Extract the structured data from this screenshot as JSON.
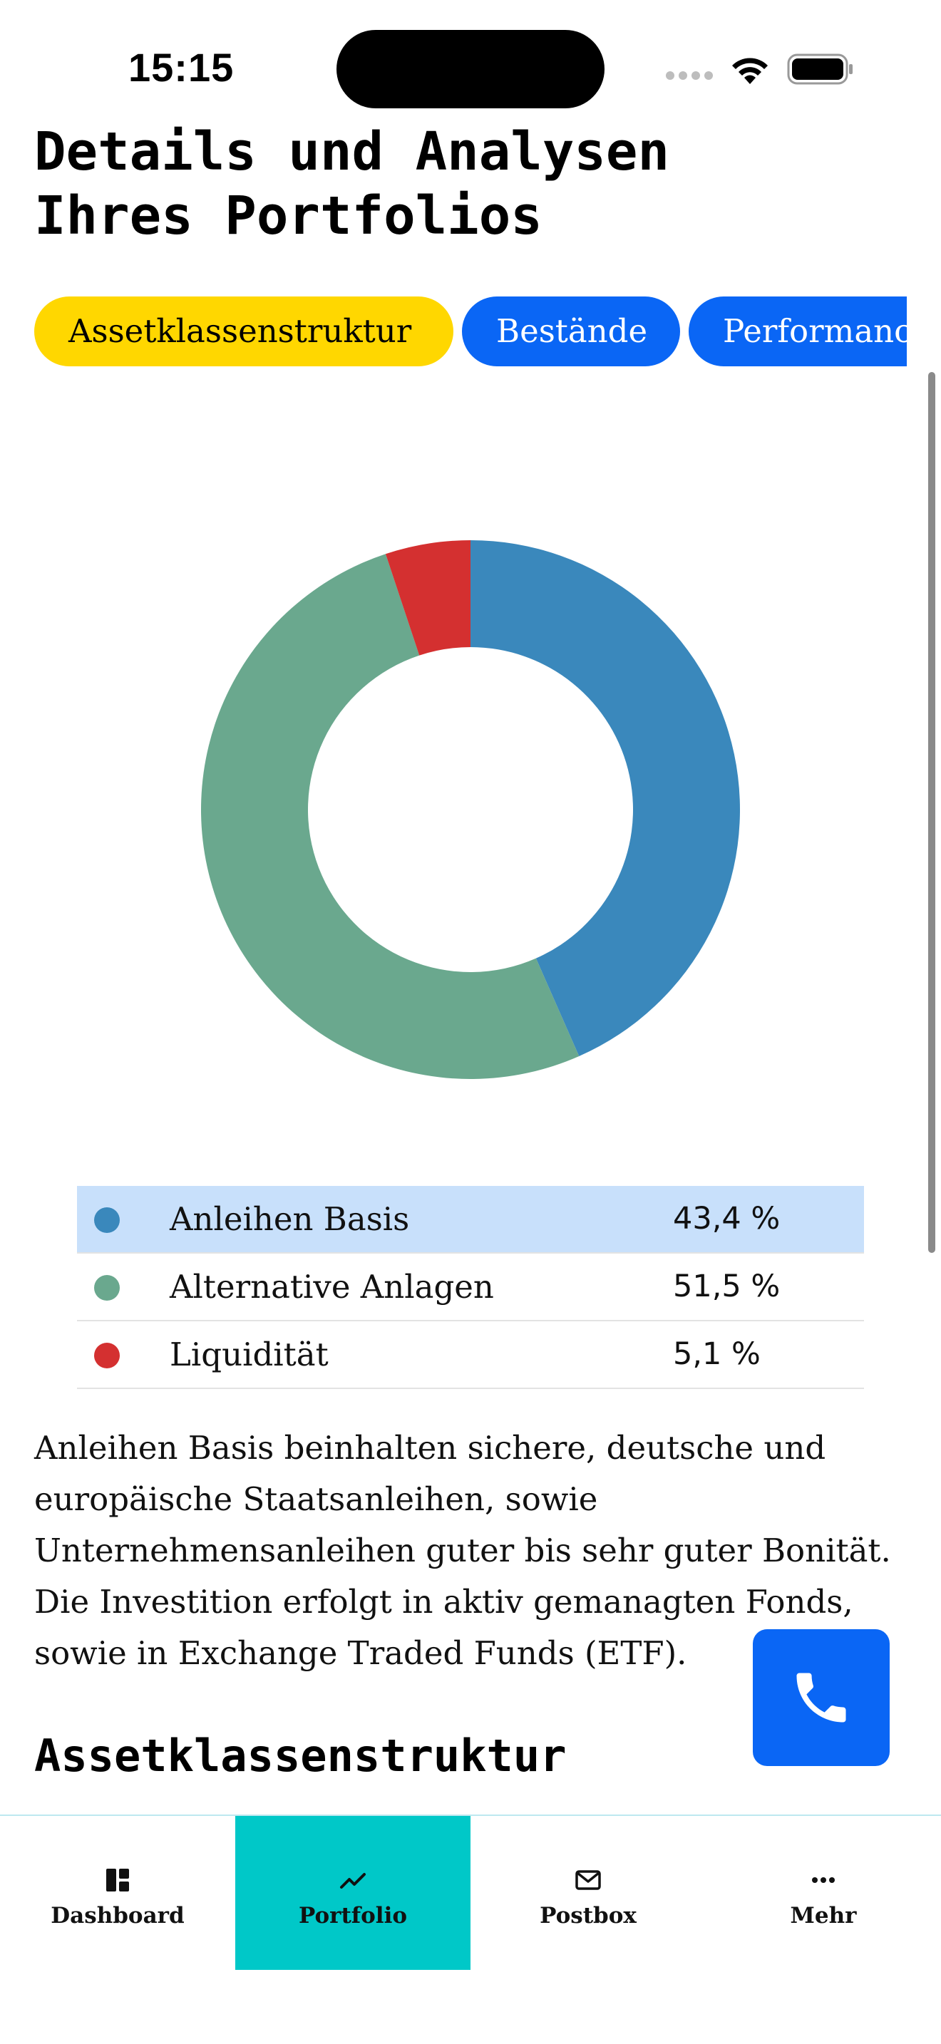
{
  "status_bar": {
    "time": "15:15"
  },
  "page": {
    "title": "Details und Analysen\nIhres Portfolios"
  },
  "tabs": [
    {
      "label": "Assetklassenstruktur",
      "active": true
    },
    {
      "label": "Bestände",
      "active": false
    },
    {
      "label": "Performance",
      "active": false
    }
  ],
  "chart_data": {
    "type": "pie",
    "variant": "donut",
    "categories": [
      "Anleihen Basis",
      "Alternative Anlagen",
      "Liquidität"
    ],
    "values": [
      43.4,
      51.5,
      5.1
    ],
    "colors": [
      "#3a88bc",
      "#6aa88e",
      "#d43030"
    ]
  },
  "legend": [
    {
      "label": "Anleihen Basis",
      "value": "43,4 %",
      "color": "#3a88bc",
      "highlighted": true
    },
    {
      "label": "Alternative Anlagen",
      "value": "51,5 %",
      "color": "#6aa88e",
      "highlighted": false
    },
    {
      "label": "Liquidität",
      "value": "5,1 %",
      "color": "#d43030",
      "highlighted": false
    }
  ],
  "description_lines": [
    "Anleihen Basis beinhalten sichere, deutsche und",
    "europäische Staatsanleihen, sowie",
    "Unternehmensanleihen guter bis sehr guter Bonität.",
    "Die Investition erfolgt in aktiv gemanagten Fonds,",
    "sowie in Exchange Traded Funds (ETF)."
  ],
  "section_heading": "Assetklassenstruktur",
  "bottom_nav": [
    {
      "label": "Dashboard",
      "icon": "dashboard-icon",
      "active": false
    },
    {
      "label": "Portfolio",
      "icon": "trending-up-icon",
      "active": true
    },
    {
      "label": "Postbox",
      "icon": "mail-icon",
      "active": false
    },
    {
      "label": "Mehr",
      "icon": "more-icon",
      "active": false
    }
  ],
  "colors": {
    "accent_blue": "#0a66f5",
    "tab_active": "#ffd700",
    "nav_active": "#00c8c8",
    "legend_highlight": "#c8e0fb"
  }
}
